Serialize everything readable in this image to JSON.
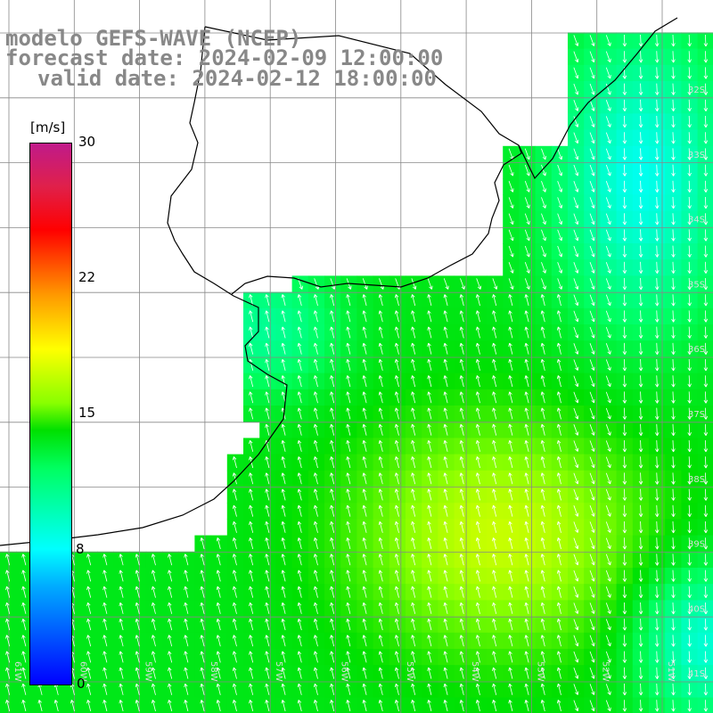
{
  "titles": {
    "model": "modelo GEFS-WAVE (NCEP)",
    "forecast": "forecast date: 2024-02-09 12:00:00",
    "valid": "valid date: 2024-02-12 18:00:00"
  },
  "colorbar": {
    "unit": "[m/s]",
    "ticks": [
      "30",
      "22",
      "15",
      "8",
      "0"
    ]
  },
  "axes": {
    "lon_labels": [
      "61W",
      "60W",
      "59W",
      "58W",
      "57W",
      "56W",
      "55W",
      "54W",
      "53W",
      "52W",
      "51W"
    ],
    "lat_labels": [
      "32S",
      "33S",
      "34S",
      "35S",
      "36S",
      "37S",
      "38S",
      "39S",
      "40S",
      "41S"
    ]
  },
  "colors": {
    "land": "#ffffff",
    "coast": "#000000",
    "grid": "#888888",
    "arrows": "#ffffff",
    "label": "#888888"
  }
}
